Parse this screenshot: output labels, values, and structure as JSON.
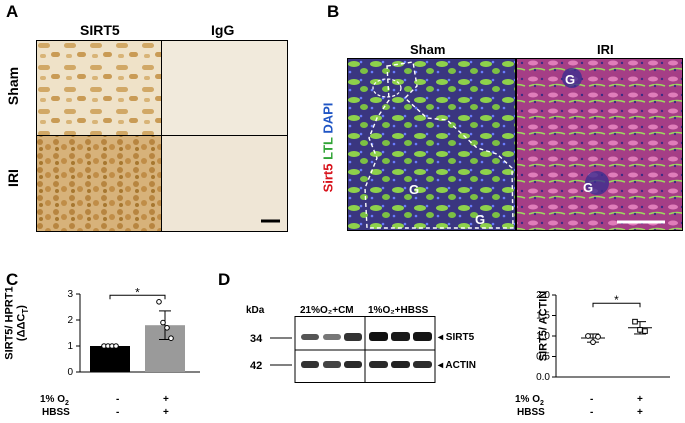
{
  "panels": {
    "A": {
      "letter": "A",
      "col_labels": [
        "SIRT5",
        "IgG"
      ],
      "row_labels": [
        "Sham",
        "IRI"
      ]
    },
    "B": {
      "letter": "B",
      "col_labels": [
        "Sham",
        "IRI"
      ],
      "side_label_parts": [
        "Sirt5",
        "LTL",
        "DAPI"
      ],
      "side_label_colors": [
        "#d8121b",
        "#2fa335",
        "#1f55c4"
      ],
      "glom_marks": [
        "G",
        "G",
        "G",
        "G"
      ]
    },
    "C": {
      "letter": "C",
      "ylabel": "SIRT5/ HPRT1",
      "ylabel2": "(ΔΔC",
      "ylabel2_sub": "T",
      "ylabel2_end": ")",
      "sig": "*",
      "cond_labels": [
        "1% O",
        "HBSS"
      ],
      "cond_sub": "2",
      "cond_values": [
        [
          "-",
          "+"
        ],
        [
          "-",
          "+"
        ]
      ]
    },
    "D": {
      "letter": "D",
      "kda_label": "kDa",
      "lane_groups": [
        "21%O₂+CM",
        "1%O₂+HBSS"
      ],
      "mw": [
        "34",
        "42"
      ],
      "band_labels": [
        "◂ SIRT5",
        "◂ ACTIN"
      ],
      "ylabel": "SIRT5/ ACTIN",
      "sig": "*",
      "cond_labels": [
        "1% O",
        "HBSS"
      ],
      "cond_sub": "2",
      "cond_values": [
        [
          "-",
          "+"
        ],
        [
          "-",
          "+"
        ]
      ]
    }
  },
  "chart_data": [
    {
      "type": "bar",
      "panel": "C",
      "ylabel": "SIRT5/ HPRT1 (ΔΔCT)",
      "yticks": [
        0,
        1,
        2,
        3
      ],
      "ylim": [
        0,
        3
      ],
      "categories": [
        "-/-",
        "+/+"
      ],
      "values": [
        1.0,
        1.8
      ],
      "errors": [
        0.0,
        0.55
      ],
      "points": [
        [
          1.0,
          1.0,
          1.0,
          1.0
        ],
        [
          2.7,
          1.9,
          1.7,
          1.3
        ]
      ],
      "bar_colors": [
        "#000000",
        "#9a9a9a"
      ]
    },
    {
      "type": "scatter",
      "panel": "D",
      "ylabel": "SIRT5/ ACTIN",
      "yticks": [
        0.0,
        0.5,
        1.0,
        1.5,
        2.0
      ],
      "ylim": [
        0,
        2.0
      ],
      "categories": [
        "-/-",
        "+/+"
      ],
      "means": [
        0.95,
        1.2
      ],
      "errors": [
        0.1,
        0.15
      ],
      "points": [
        [
          1.0,
          0.85,
          0.98
        ],
        [
          1.35,
          1.15,
          1.12
        ]
      ]
    }
  ]
}
